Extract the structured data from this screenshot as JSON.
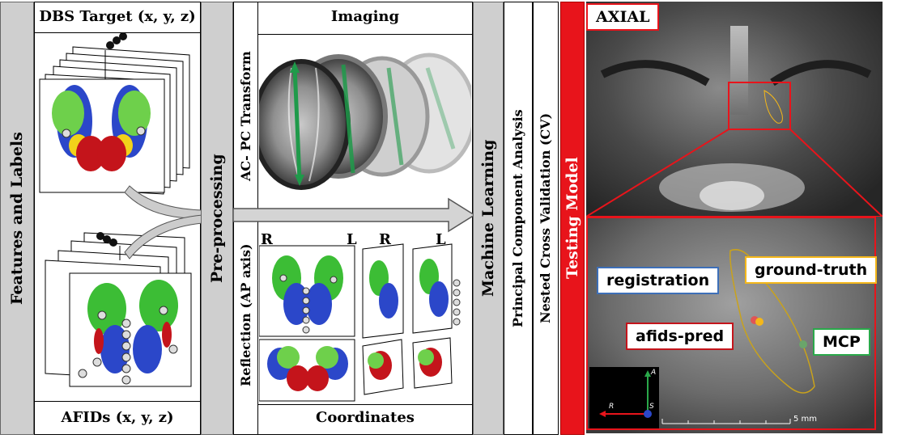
{
  "left_column": {
    "vertical_label": "Features and Labels",
    "top_header": "DBS Target (x, y, z)",
    "bottom_header": "AFIDs (x, y, z)"
  },
  "preprocessing": {
    "vertical_label": "Pre-processing",
    "imaging_header": "Imaging",
    "ac_pc_label": "AC- PC Transform",
    "reflection_label": "Reflection (AP axis)",
    "coordinates_header": "Coordinates",
    "side_labels": [
      "R",
      "L",
      "R",
      "L"
    ]
  },
  "machine_learning": {
    "vertical_label": "Machine Learning",
    "pca_label": "Principal Component Analysis",
    "cv_label": "Nested Cross Validation (CV)",
    "testing_label": "Testing Model"
  },
  "testing": {
    "view_label": "AXIAL",
    "callouts": {
      "registration": "registration",
      "ground_truth": "ground-truth",
      "afids_pred": "afids-pred",
      "mcp": "MCP"
    },
    "orientation": {
      "a": "A",
      "r": "R",
      "s": "S"
    },
    "scale_label": "5 mm"
  },
  "colors": {
    "red": "#e8141b",
    "green": "#2aa84a",
    "blue": "#3d6fb8",
    "yellow": "#f4b71a",
    "gray_panel": "#cfcfcf"
  }
}
